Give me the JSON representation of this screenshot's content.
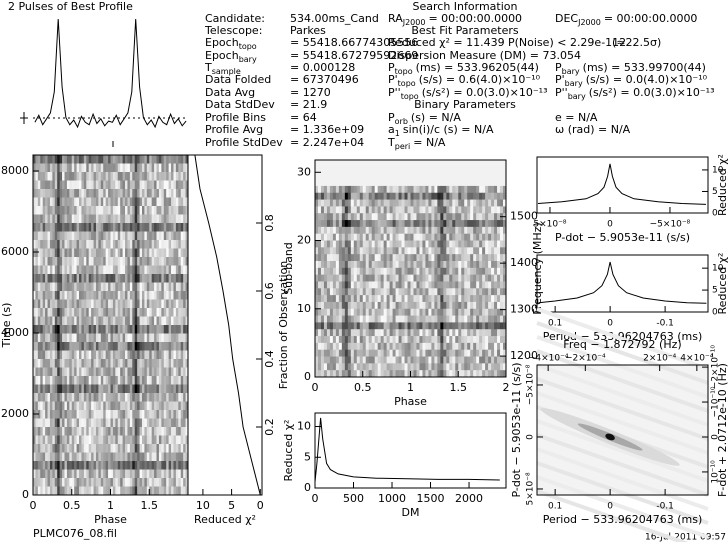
{
  "chart_data": [
    {
      "type": "profile",
      "title": "2 Pulses of Best Profile",
      "values": [
        0.12,
        0.18,
        0.1,
        0.15,
        0.2,
        0.38,
        1.0,
        0.42,
        0.16,
        0.1,
        0.14,
        0.08,
        0.17,
        0.12,
        0.1,
        0.19,
        0.11,
        0.15,
        0.09,
        0.13,
        0.12,
        0.18,
        0.1,
        0.15,
        0.2,
        0.38,
        1.0,
        0.42,
        0.16,
        0.1,
        0.14,
        0.08,
        0.17,
        0.12,
        0.1,
        0.19,
        0.11,
        0.15,
        0.09,
        0.13
      ]
    },
    {
      "type": "heatmap",
      "xlabel": "Phase",
      "ylabel": "Time (s)",
      "xlim": [
        0,
        2
      ],
      "xticks": [
        0,
        0.5,
        1,
        1.5
      ],
      "ylim": [
        0,
        8395
      ],
      "yticks": [
        0,
        2000,
        4000,
        6000,
        8000
      ]
    },
    {
      "type": "line",
      "orientation": "vertical",
      "xlabel": "Reduced χ²",
      "y2label": "Fraction of Observation",
      "xlim": [
        12.6,
        -0.3
      ],
      "xticks": [
        10,
        5,
        0
      ],
      "y2lim": [
        0,
        1
      ],
      "y2ticks": [
        0.2,
        0.4,
        0.6,
        0.8
      ],
      "x": [
        0,
        0.1,
        0.2,
        0.3,
        0.4,
        0.5,
        0.6,
        0.7,
        0.8,
        0.9,
        1
      ],
      "values": [
        0,
        1.5,
        3,
        3.8,
        4.8,
        5.5,
        6.5,
        7.6,
        9,
        10.5,
        11.4
      ]
    },
    {
      "type": "heatmap",
      "xlabel": "Phase",
      "ylabel": "Sub-band",
      "y2label": "Frequency (MHz)",
      "xlim": [
        0,
        2
      ],
      "xticks": [
        0,
        0.5,
        1,
        1.5,
        2
      ],
      "ylim": [
        0,
        31.8
      ],
      "yticks": [
        0,
        10,
        20,
        30
      ],
      "y2lim": [
        1155,
        1622
      ],
      "y2ticks": [
        1200,
        1300,
        1400,
        1500
      ]
    },
    {
      "type": "line",
      "xlabel": "DM",
      "ylabel": "Reduced χ²",
      "xlim": [
        0,
        2480
      ],
      "xticks": [
        0,
        500,
        1000,
        1500,
        2000
      ],
      "ylim": [
        0,
        12.2
      ],
      "yticks": [
        0,
        5,
        10
      ],
      "x": [
        0,
        25,
        50,
        73,
        100,
        150,
        200,
        300,
        500,
        800,
        1200,
        1600,
        2000,
        2400
      ],
      "values": [
        1,
        4,
        8,
        11.4,
        8,
        4,
        3,
        2.3,
        1.8,
        1.6,
        1.5,
        1.4,
        1.4,
        1.3
      ]
    },
    {
      "type": "line",
      "xlabel": "P-dot − 5.9053e-11 (s/s)",
      "y2label": "Reduced χ²",
      "xlim": [
        6.08e-08,
        -8.17e-08
      ],
      "xticks": [
        {
          "value": 5e-08,
          "label": "5×10⁻⁸"
        },
        0,
        {
          "value": -5e-08,
          "label": "−5×10⁻⁸"
        }
      ],
      "y2lim": [
        0,
        13
      ],
      "y2ticks": [
        0,
        5,
        10
      ],
      "x": [
        6e-08,
        4e-08,
        2e-08,
        1e-08,
        5e-09,
        2e-09,
        0,
        -2e-09,
        -5e-09,
        -1e-08,
        -2e-08,
        -4e-08,
        -6e-08,
        -8e-08
      ],
      "values": [
        2.2,
        2.6,
        3.3,
        4.5,
        6,
        8.5,
        11.4,
        8.5,
        6,
        4.5,
        3.3,
        2.6,
        2.2,
        2
      ]
    },
    {
      "type": "line",
      "xlabel": "Period − 533.96204763 (ms)",
      "y2label": "Reduced χ²",
      "xlim": [
        0.133,
        -0.178
      ],
      "xticks": [
        0.1,
        0,
        -0.1
      ],
      "y2lim": [
        0,
        13
      ],
      "y2ticks": [
        0,
        5,
        10
      ],
      "x": [
        0.13,
        0.1,
        0.06,
        0.03,
        0.015,
        0.005,
        0,
        -0.005,
        -0.015,
        -0.03,
        -0.06,
        -0.1,
        -0.14,
        -0.175
      ],
      "values": [
        2.1,
        2.5,
        3.2,
        4.4,
        6,
        8.6,
        11.4,
        8.6,
        6,
        4.4,
        3.2,
        2.5,
        2.1,
        2
      ]
    },
    {
      "type": "plane",
      "xlabel": "Period − 533.96204763 (ms)",
      "x2label": "Freq − 1.872792 (Hz)",
      "ylabel": "P-dot − 5.9053e-11 (s/s)",
      "y2label": "F-dot + 2.0712e-10 (Hz)",
      "xlim": [
        0.133,
        -0.178
      ],
      "xticks": [
        0.1,
        0,
        -0.1
      ],
      "x2lim": [
        -0.00046,
        0.00046
      ],
      "x2ticks": [
        {
          "value": -0.0004,
          "label": "−4×10⁻⁴"
        },
        {
          "value": -0.0002,
          "label": "−2×10⁻⁴"
        },
        {
          "value": 0.0002,
          "label": "2×10⁻⁴"
        },
        {
          "value": 0.0004,
          "label": "4×10⁻⁴"
        }
      ],
      "ylim": [
        5.58e-08,
        -6.92e-08
      ],
      "yticks": [
        {
          "value": -5e-08,
          "label": "−5×10⁻⁸"
        },
        0,
        {
          "value": 5e-08,
          "label": "5×10⁻⁸"
        }
      ],
      "y2lim": [
        1.66e-10,
        -2.06e-10
      ],
      "y2ticks": [
        {
          "value": -2e-10,
          "label": "−2×10⁻¹⁰"
        },
        {
          "value": -1e-10,
          "label": "−10⁻¹⁰"
        },
        0,
        {
          "value": 1e-10,
          "label": "10⁻¹⁰"
        }
      ]
    }
  ],
  "info": [
    {
      "label": "Candidate:",
      "value": "534.00ms_Cand"
    },
    {
      "label": "Telescope:",
      "value": "Parkes"
    },
    {
      "label": "Epoch",
      "sub": "topo",
      "value": "= 55418.66774305556"
    },
    {
      "label": "Epoch",
      "sub": "bary",
      "value": "= 55418.67279592669"
    },
    {
      "label": "T",
      "sub": "sample",
      "value": "= 0.000128"
    },
    {
      "label": "Data Folded",
      "value": "= 67370496"
    },
    {
      "label": "Data Avg",
      "value": "= 1270"
    },
    {
      "label": "Data StdDev",
      "value": "= 21.9"
    },
    {
      "label": "Profile Bins",
      "value": "= 64"
    },
    {
      "label": "Profile Avg",
      "value": "= 1.336e+09"
    },
    {
      "label": "Profile StdDev",
      "value": "= 2.247e+04"
    }
  ],
  "search_info": {
    "title": "Search Information",
    "rows": [
      {
        "items": [
          {
            "label": "RA",
            "sub": "J2000",
            "value": "= 00:00:00.0000"
          },
          {
            "label": "DEC",
            "sub": "J2000",
            "value": "= 00:00:00.0000"
          }
        ]
      },
      {
        "heading": "Best Fit Parameters"
      },
      {
        "items": [
          {
            "label": "Reduced χ² = 11.439"
          },
          {
            "label": "P(Noise) < 2.29e-112"
          },
          {
            "label": "(≈22.5σ)"
          }
        ]
      },
      {
        "items": [
          {
            "label": "Dispersion Measure (DM) = 73.054"
          }
        ]
      },
      {
        "items": [
          {
            "label": "P",
            "sub": "topo",
            "value": "(ms) = 533.96205(44)"
          },
          {
            "label": "P",
            "sub": "bary",
            "value": "(ms) = 533.99700(44)"
          }
        ]
      },
      {
        "items": [
          {
            "label": "P'",
            "sub": "topo",
            "value": "(s/s) = 0.6(4.0)×10⁻¹⁰"
          },
          {
            "label": "P'",
            "sub": "bary",
            "value": "(s/s) = 0.0(4.0)×10⁻¹⁰"
          }
        ]
      },
      {
        "items": [
          {
            "label": "P''",
            "sub": "topo",
            "value": "(s/s²) = 0.0(3.0)×10⁻¹³"
          },
          {
            "label": "P''",
            "sub": "bary",
            "value": "(s/s²) = 0.0(3.0)×10⁻¹³"
          }
        ]
      },
      {
        "heading": "Binary Parameters"
      },
      {
        "items": [
          {
            "label": "P",
            "sub": "orb",
            "value": "(s) = N/A"
          },
          {
            "label": "e = N/A"
          }
        ]
      },
      {
        "items": [
          {
            "label": "a",
            "sub": "1",
            "value": "sin(i)/c (s) = N/A"
          },
          {
            "label": "ω (rad) = N/A"
          }
        ]
      },
      {
        "items": [
          {
            "label": "T",
            "sub": "peri",
            "value": "= N/A"
          }
        ]
      }
    ]
  },
  "footer": {
    "filename": "PLMC076_08.fil",
    "date": "16-Jul-2011 09:57"
  }
}
